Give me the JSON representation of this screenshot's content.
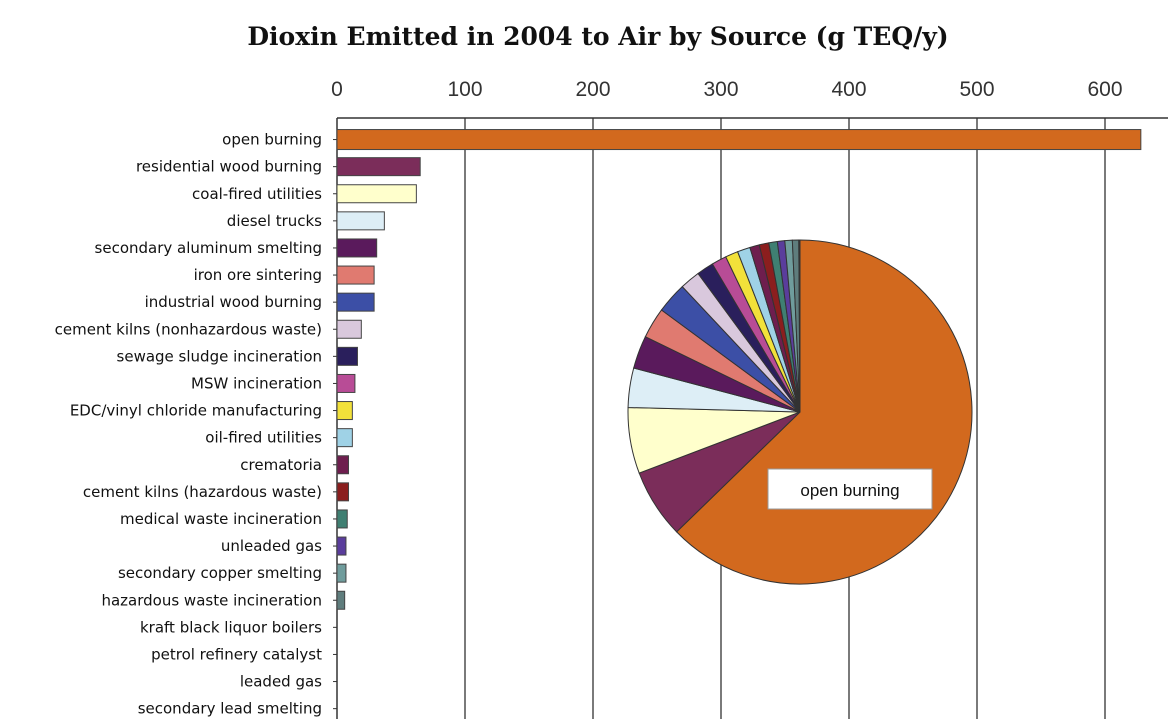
{
  "chart_data": [
    {
      "type": "bar",
      "orientation": "horizontal",
      "title": "Dioxin Emitted in 2004 to Air by Source (g TEQ/y)",
      "xlabel": "",
      "ylabel": "",
      "xlim": [
        0,
        650
      ],
      "xticks": [
        0,
        100,
        200,
        300,
        400,
        500,
        600
      ],
      "x_axis_position": "top",
      "grid": true,
      "categories": [
        "open burning",
        "residential wood burning",
        "coal-fired utilities",
        "diesel trucks",
        "secondary aluminum smelting",
        "iron ore sintering",
        "industrial wood burning",
        "cement kilns (nonhazardous waste)",
        "sewage sludge incineration",
        "MSW incineration",
        "EDC/vinyl chloride manufacturing",
        "oil-fired utilities",
        "crematoria",
        "cement kilns (hazardous waste)",
        "medical waste incineration",
        "unleaded gas",
        "secondary copper smelting",
        "hazardous waste incineration",
        "kraft black liquor boilers",
        "petrol refinery catalyst",
        "leaded gas",
        "secondary lead smelting"
      ],
      "values": [
        628,
        65,
        62,
        37,
        31,
        29,
        29,
        19,
        16,
        14,
        12,
        12,
        9,
        9,
        8,
        7,
        7,
        6,
        0.5,
        0.3,
        0.2,
        0.1
      ],
      "colors": [
        "#d2691e",
        "#7b2d5a",
        "#ffffcc",
        "#ddeef6",
        "#5a1a5c",
        "#e07a70",
        "#3c4fa6",
        "#d9c8dd",
        "#2a1f5c",
        "#b84c96",
        "#f2e13a",
        "#9fd2e6",
        "#6e1e4e",
        "#8b1e1e",
        "#3f7f72",
        "#5a3d9c",
        "#6f9c9c",
        "#5f7d7d",
        "#3f3f5f",
        "#2f4f4f",
        "#4f4f7f",
        "#5c5c5c"
      ]
    },
    {
      "type": "pie",
      "annotation": "open burning",
      "categories": [
        "open burning",
        "residential wood burning",
        "coal-fired utilities",
        "diesel trucks",
        "secondary aluminum smelting",
        "iron ore sintering",
        "industrial wood burning",
        "cement kilns (nonhazardous waste)",
        "sewage sludge incineration",
        "MSW incineration",
        "EDC/vinyl chloride manufacturing",
        "oil-fired utilities",
        "crematoria",
        "cement kilns (hazardous waste)",
        "medical waste incineration",
        "unleaded gas",
        "secondary copper smelting",
        "hazardous waste incineration",
        "kraft black liquor boilers",
        "petrol refinery catalyst",
        "leaded gas",
        "secondary lead smelting"
      ],
      "values": [
        628,
        65,
        62,
        37,
        31,
        29,
        29,
        19,
        16,
        14,
        12,
        12,
        9,
        9,
        8,
        7,
        7,
        6,
        0.5,
        0.3,
        0.2,
        0.1
      ],
      "colors": [
        "#d2691e",
        "#7b2d5a",
        "#ffffcc",
        "#ddeef6",
        "#5a1a5c",
        "#e07a70",
        "#3c4fa6",
        "#d9c8dd",
        "#2a1f5c",
        "#b84c96",
        "#f2e13a",
        "#9fd2e6",
        "#6e1e4e",
        "#8b1e1e",
        "#3f7f72",
        "#5a3d9c",
        "#6f9c9c",
        "#5f7d7d",
        "#3f3f5f",
        "#2f4f4f",
        "#4f4f7f",
        "#5c5c5c"
      ]
    }
  ]
}
